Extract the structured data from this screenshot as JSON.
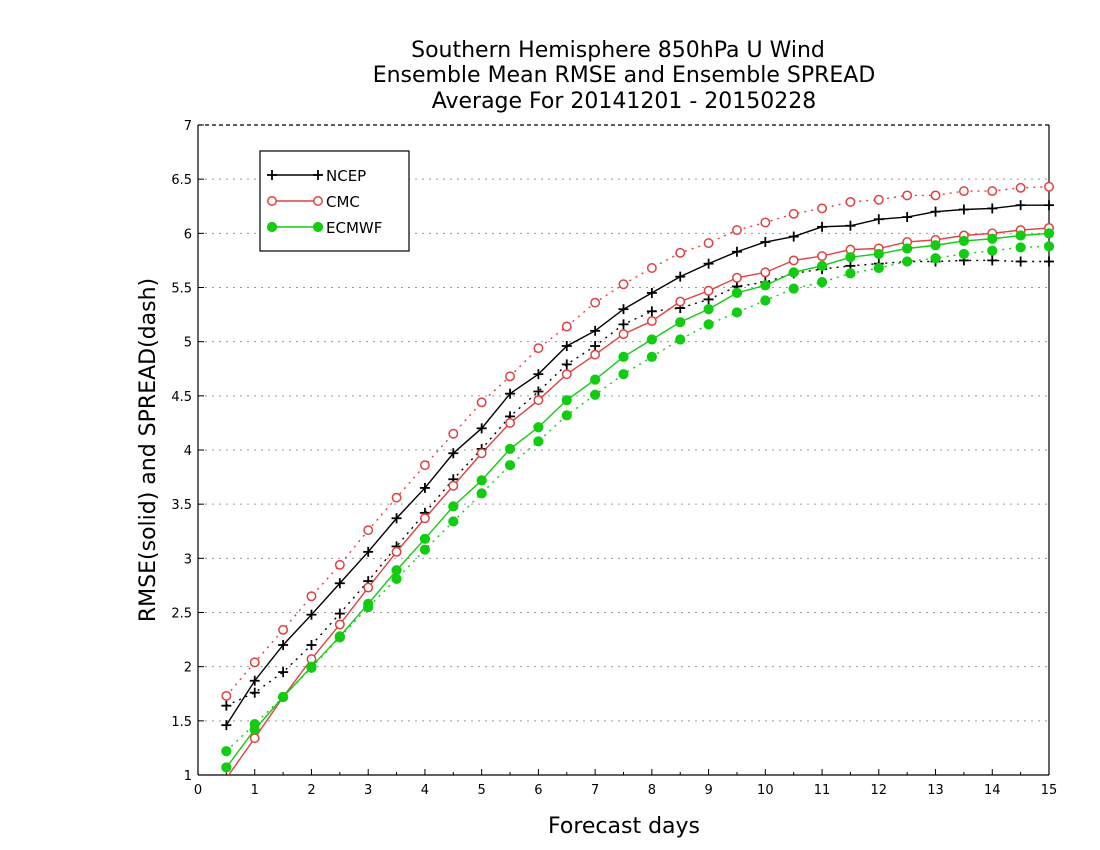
{
  "chart_data": {
    "type": "line",
    "title": [
      "Southern Hemisphere 850hPa U Wind",
      "Ensemble Mean RMSE and Ensemble SPREAD",
      "Average For 20141201 - 20150228"
    ],
    "xlabel": "Forecast days",
    "ylabel": "RMSE(solid) and SPREAD(dash)",
    "xlim": [
      0,
      15
    ],
    "ylim": [
      1,
      7
    ],
    "xticks": [
      "0",
      "1",
      "2",
      "3",
      "4",
      "5",
      "6",
      "7",
      "8",
      "9",
      "10",
      "11",
      "12",
      "13",
      "14",
      "15"
    ],
    "yticks": [
      "1",
      "1.5",
      "2",
      "2.5",
      "3",
      "3.5",
      "4",
      "4.5",
      "5",
      "5.5",
      "6",
      "6.5",
      "7"
    ],
    "grid": true,
    "legend_position": "top-left",
    "x": [
      0.5,
      1,
      1.5,
      2,
      2.5,
      3,
      3.5,
      4,
      4.5,
      5,
      5.5,
      6,
      6.5,
      7,
      7.5,
      8,
      8.5,
      9,
      9.5,
      10,
      10.5,
      11,
      11.5,
      12,
      12.5,
      13,
      13.5,
      14,
      14.5,
      15
    ],
    "series": [
      {
        "name": "NCEP",
        "metric": "rmse",
        "color": "#000000",
        "marker": "plus",
        "values": [
          1.46,
          1.87,
          2.2,
          2.48,
          2.77,
          3.06,
          3.37,
          3.65,
          3.97,
          4.2,
          4.52,
          4.7,
          4.96,
          5.1,
          5.3,
          5.45,
          5.6,
          5.72,
          5.83,
          5.92,
          5.97,
          6.06,
          6.07,
          6.13,
          6.15,
          6.2,
          6.22,
          6.23,
          6.26,
          6.26
        ]
      },
      {
        "name": "NCEP",
        "metric": "spread",
        "color": "#000000",
        "marker": "plus",
        "values": [
          1.64,
          1.76,
          1.95,
          2.2,
          2.49,
          2.79,
          3.11,
          3.42,
          3.73,
          4.01,
          4.31,
          4.54,
          4.79,
          4.96,
          5.16,
          5.28,
          5.31,
          5.39,
          5.51,
          5.55,
          5.63,
          5.67,
          5.7,
          5.72,
          5.74,
          5.74,
          5.75,
          5.75,
          5.74,
          5.74
        ]
      },
      {
        "name": "CMC",
        "metric": "rmse",
        "color": "#e04040",
        "marker": "circle",
        "values": [
          0.97,
          1.34,
          1.72,
          2.07,
          2.39,
          2.73,
          3.06,
          3.37,
          3.67,
          3.97,
          4.25,
          4.46,
          4.7,
          4.88,
          5.07,
          5.19,
          5.37,
          5.47,
          5.59,
          5.64,
          5.75,
          5.79,
          5.85,
          5.86,
          5.92,
          5.94,
          5.98,
          6.0,
          6.03,
          6.05
        ]
      },
      {
        "name": "CMC",
        "metric": "spread",
        "color": "#e04040",
        "marker": "circle",
        "values": [
          1.73,
          2.04,
          2.34,
          2.65,
          2.94,
          3.26,
          3.56,
          3.86,
          4.15,
          4.44,
          4.68,
          4.94,
          5.14,
          5.36,
          5.53,
          5.68,
          5.82,
          5.91,
          6.03,
          6.1,
          6.18,
          6.23,
          6.29,
          6.31,
          6.35,
          6.35,
          6.39,
          6.39,
          6.42,
          6.43
        ]
      },
      {
        "name": "ECMWF",
        "metric": "rmse",
        "color": "#11cc11",
        "marker": "dot",
        "values": [
          1.07,
          1.42,
          1.72,
          2.0,
          2.28,
          2.58,
          2.89,
          3.18,
          3.48,
          3.72,
          4.01,
          4.21,
          4.46,
          4.65,
          4.86,
          5.02,
          5.18,
          5.3,
          5.45,
          5.52,
          5.64,
          5.7,
          5.78,
          5.81,
          5.86,
          5.89,
          5.93,
          5.95,
          5.98,
          6.0
        ]
      },
      {
        "name": "ECMWF",
        "metric": "spread",
        "color": "#11cc11",
        "marker": "dot",
        "values": [
          1.22,
          1.47,
          1.72,
          1.99,
          2.27,
          2.55,
          2.81,
          3.08,
          3.34,
          3.6,
          3.86,
          4.08,
          4.32,
          4.51,
          4.7,
          4.86,
          5.02,
          5.16,
          5.27,
          5.38,
          5.49,
          5.55,
          5.63,
          5.68,
          5.74,
          5.77,
          5.81,
          5.84,
          5.87,
          5.88
        ]
      }
    ],
    "legend": [
      {
        "name": "NCEP",
        "color": "#000000",
        "marker": "plus"
      },
      {
        "name": "CMC",
        "color": "#e04040",
        "marker": "circle"
      },
      {
        "name": "ECMWF",
        "color": "#11cc11",
        "marker": "dot"
      }
    ]
  }
}
